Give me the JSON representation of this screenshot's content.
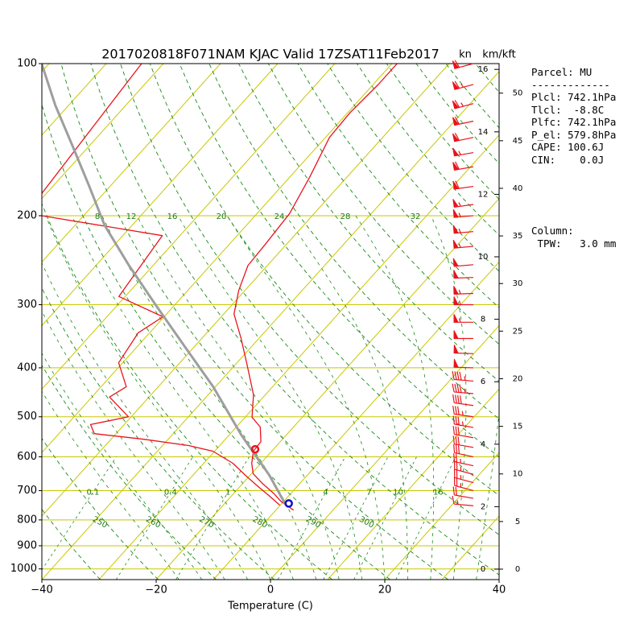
{
  "chart_data": {
    "type": "skewt",
    "title": "2017020818F071NAM KJAC Valid 17ZSAT11Feb2017",
    "xlabel": "Temperature (C)",
    "xlim": [
      -40,
      40
    ],
    "xticks": [
      {
        "value": -40,
        "label": "−40"
      },
      {
        "value": -20,
        "label": "−20"
      },
      0,
      20,
      40
    ],
    "ylim": [
      1050,
      100
    ],
    "yticks": [
      100,
      200,
      300,
      400,
      500,
      600,
      700,
      800,
      900,
      1000
    ],
    "ylog": true,
    "grid": true,
    "skew": 0.9,
    "series": [
      {
        "color": "#e8141c",
        "pressure": [
          765,
          735,
          708,
          678,
          648,
          618,
          585,
          560,
          524,
          501,
          452,
          391,
          350,
          313,
          281,
          251,
          228,
          198,
          168,
          140,
          125,
          110,
          100
        ],
        "values": [
          -6.9,
          -10.5,
          -13.1,
          -16.5,
          -19.7,
          -21.6,
          -23.2,
          -23.4,
          -25.8,
          -28.8,
          -32.1,
          -38.3,
          -43.1,
          -48.2,
          -51.1,
          -53.4,
          -53.7,
          -54.3,
          -56.5,
          -59.3,
          -59.6,
          -59.1,
          -59.1
        ]
      },
      {
        "color": "#e8141c",
        "pressure": [
          748,
          716,
          690,
          653,
          618,
          585,
          570,
          554,
          540,
          518,
          500,
          457,
          436,
          391,
          341,
          317,
          289,
          219,
          200,
          190,
          181,
          100
        ],
        "values": [
          -10.1,
          -13.5,
          -16.5,
          -20.8,
          -24.9,
          -30.3,
          -35.4,
          -44.2,
          -53.8,
          -55.9,
          -50.5,
          -56.9,
          -55.6,
          -60.7,
          -62,
          -60.2,
          -71.1,
          -73.1,
          -97.3,
          -108,
          -100.8,
          -103.8
        ]
      },
      {
        "color": "#9e9e9e",
        "pressure": [
          743,
          653,
          596,
          543,
          436,
          363,
          302,
          251,
          209,
          174,
          145,
          121,
          100
        ],
        "values": [
          -9.4,
          -16.6,
          -22.2,
          -27.9,
          -40.4,
          -51.7,
          -63,
          -74.2,
          -84.8,
          -93.9,
          -103.1,
          -112.3,
          -121.3
        ]
      }
    ],
    "lcl": {
      "pressure": 742.1,
      "value": -8.8,
      "color": "#1010c0"
    },
    "el": {
      "pressure": 579.8,
      "value": -23.2,
      "color": "#e8141c"
    },
    "dry_adiabat_labels": [
      250,
      260,
      270,
      280,
      290,
      300
    ],
    "mixing_ratio_labels": [
      0.1,
      0.4,
      1,
      4,
      7,
      10,
      16
    ],
    "upper_labels": [
      8,
      12,
      16,
      20,
      24,
      28,
      32
    ],
    "wind_unit": "kn",
    "height_unit": "km/kft",
    "km_ticks": [
      0,
      2,
      4,
      6,
      8,
      10,
      12,
      14,
      16
    ],
    "kft_ticks": [
      0,
      5,
      10,
      15,
      20,
      25,
      30,
      35,
      40,
      45,
      50
    ],
    "winds": {
      "pressure": [
        100,
        110,
        120,
        130,
        140,
        150,
        160,
        175,
        190,
        200,
        215,
        230,
        250,
        265,
        285,
        300,
        325,
        350,
        375,
        400,
        425,
        450,
        475,
        500,
        525,
        550,
        575,
        600,
        625,
        650,
        675,
        700,
        725,
        750
      ],
      "speed": [
        60,
        65,
        65,
        60,
        60,
        55,
        60,
        60,
        55,
        55,
        55,
        55,
        50,
        50,
        55,
        55,
        55,
        50,
        50,
        50,
        45,
        45,
        40,
        35,
        35,
        30,
        30,
        30,
        25,
        25,
        25,
        25,
        20,
        15
      ],
      "direction": [
        255,
        255,
        255,
        258,
        258,
        260,
        260,
        262,
        262,
        265,
        265,
        265,
        265,
        268,
        268,
        270,
        270,
        270,
        272,
        272,
        275,
        275,
        278,
        278,
        280,
        280,
        280,
        282,
        282,
        285,
        285,
        285,
        280,
        275
      ],
      "color": "#e8141c"
    }
  },
  "info": {
    "lines": [
      "Parcel: MU",
      "-------------",
      "Plcl: 742.1hPa",
      "Tlcl:  -8.8C",
      "Plfc: 742.1hPa",
      "P_el: 579.8hPa",
      "CAPE: 100.6J",
      "CIN:    0.0J"
    ],
    "column": [
      "Column:",
      " TPW:   3.0 mm"
    ]
  }
}
